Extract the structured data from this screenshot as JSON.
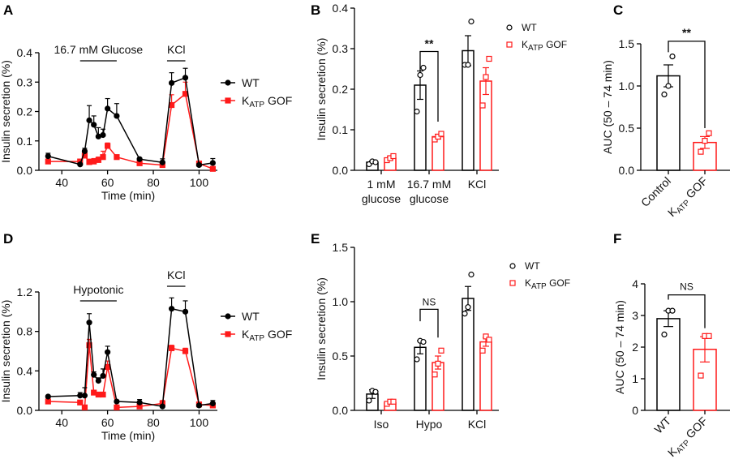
{
  "colors": {
    "wt": "#000000",
    "gof": "#ff1a1a"
  },
  "legend": {
    "wt": "WT",
    "gof_k": "K",
    "gof_sub": "ATP",
    "gof_rest": " GOF"
  },
  "chart_data": [
    {
      "panel": "A",
      "type": "line",
      "xlabel": "Time (min)",
      "ylabel": "Insulin secretion (%)",
      "xticks": [
        40,
        60,
        80,
        100
      ],
      "yticks": [
        "0.0",
        "0.1",
        "0.2",
        "0.3",
        "0.4"
      ],
      "xlim": [
        30,
        108
      ],
      "ylim": [
        0,
        0.4
      ],
      "annotations": [
        {
          "text": "16.7 mM Glucose",
          "from": 48,
          "to": 64
        },
        {
          "text": "KCl",
          "from": 86,
          "to": 94
        }
      ],
      "x": [
        34,
        48,
        50,
        52,
        54,
        56,
        58,
        60,
        64,
        74,
        84,
        88,
        94,
        100,
        106
      ],
      "series": [
        {
          "name": "WT",
          "values": [
            0.048,
            0.02,
            0.065,
            0.17,
            0.155,
            0.115,
            0.12,
            0.21,
            0.185,
            0.038,
            0.027,
            0.297,
            0.315,
            0.018,
            0.025
          ],
          "sem": [
            0.01,
            0.004,
            0.01,
            0.05,
            0.03,
            0.03,
            0.02,
            0.034,
            0.042,
            0.005,
            0.012,
            0.035,
            0.032,
            0.005,
            0.015
          ]
        },
        {
          "name": "KATP GOF",
          "values": [
            0.03,
            0.03,
            0.05,
            0.028,
            0.03,
            0.035,
            0.045,
            0.083,
            0.045,
            0.024,
            0.018,
            0.222,
            0.26,
            0.023,
            0.005
          ],
          "sem": [
            0.005,
            0.005,
            0.02,
            0.01,
            0.01,
            0.01,
            0.02,
            0.01,
            0.005,
            0.005,
            0.005,
            0.035,
            0.04,
            0.005,
            0.005
          ]
        }
      ]
    },
    {
      "panel": "B",
      "type": "bar",
      "ylabel": "Insulin secretion (%)",
      "categories": [
        [
          "1 mM",
          "glucose"
        ],
        [
          "16.7 mM",
          "glucose"
        ],
        [
          "KCl",
          ""
        ]
      ],
      "yticks": [
        "0.0",
        "0.1",
        "0.2",
        "0.3",
        "0.4"
      ],
      "ylim": [
        0,
        0.4
      ],
      "series": [
        {
          "name": "WT",
          "values": [
            0.02,
            0.21,
            0.295
          ],
          "sem": [
            0.003,
            0.035,
            0.037
          ],
          "points": [
            [
              0.015,
              0.022,
              0.02
            ],
            [
              0.145,
              0.235,
              0.253
            ],
            [
              0.26,
              0.26,
              0.367
            ]
          ]
        },
        {
          "name": "KATP GOF",
          "values": [
            0.03,
            0.083,
            0.22
          ],
          "sem": [
            0.004,
            0.006,
            0.033
          ],
          "points": [
            [
              0.025,
              0.03,
              0.035
            ],
            [
              0.076,
              0.083,
              0.09
            ],
            [
              0.16,
              0.23,
              0.275
            ]
          ]
        }
      ],
      "significance": [
        {
          "group": 1,
          "label": "**",
          "top": 0.293,
          "left": 0.245,
          "right": 0.12
        }
      ]
    },
    {
      "panel": "C",
      "type": "bar",
      "ylabel": "AUC (50 – 74 min)",
      "categories": [
        "Control",
        "KATP GOF"
      ],
      "yticks": [
        "0.0",
        "0.5",
        "1.0",
        "1.5"
      ],
      "ylim": [
        0,
        1.5
      ],
      "values": [
        1.12,
        0.33
      ],
      "sem": [
        0.13,
        0.07
      ],
      "points": [
        [
          0.9,
          1.0,
          1.35
        ],
        [
          0.22,
          0.35,
          0.44
        ]
      ],
      "significance": {
        "label": "**",
        "top": 1.53,
        "left": 1.4,
        "right": 0.5
      }
    },
    {
      "panel": "D",
      "type": "line",
      "xlabel": "Time (min)",
      "ylabel": "Insulin secretion (%)",
      "xticks": [
        40,
        60,
        80,
        100
      ],
      "yticks": [
        "0.0",
        "0.4",
        "0.8",
        "1.2"
      ],
      "xlim": [
        30,
        108
      ],
      "ylim": [
        0,
        1.2
      ],
      "annotations": [
        {
          "text": "Hypotonic",
          "from": 48,
          "to": 64
        },
        {
          "text": "KCl",
          "from": 86,
          "to": 94
        }
      ],
      "x": [
        34,
        48,
        50,
        52,
        54,
        56,
        58,
        60,
        64,
        74,
        84,
        88,
        94,
        100,
        106
      ],
      "series": [
        {
          "name": "WT",
          "values": [
            0.14,
            0.15,
            0.15,
            0.89,
            0.36,
            0.3,
            0.35,
            0.59,
            0.09,
            0.08,
            0.04,
            1.03,
            1.0,
            0.05,
            0.07
          ],
          "sem": [
            0.01,
            0.03,
            0.08,
            0.09,
            0.03,
            0.03,
            0.07,
            0.06,
            0.01,
            0.03,
            0.01,
            0.11,
            0.11,
            0.01,
            0.03
          ]
        },
        {
          "name": "KATP GOF",
          "values": [
            0.09,
            0.08,
            0.03,
            0.66,
            0.18,
            0.16,
            0.16,
            0.44,
            0.03,
            0.04,
            0.07,
            0.63,
            0.6,
            0.06,
            0.05
          ],
          "sem": [
            0.01,
            0.01,
            0.01,
            0.06,
            0.01,
            0.01,
            0.01,
            0.06,
            0.01,
            0.01,
            0.03,
            0.03,
            0.03,
            0.01,
            0.02
          ]
        }
      ]
    },
    {
      "panel": "E",
      "type": "bar",
      "ylabel": "Insulin secretion (%)",
      "categories": [
        [
          "Iso",
          ""
        ],
        [
          "Hypo",
          ""
        ],
        [
          "KCl",
          ""
        ]
      ],
      "yticks": [
        "0.0",
        "0.5",
        "1.0",
        "1.5"
      ],
      "ylim": [
        0,
        1.5
      ],
      "series": [
        {
          "name": "WT",
          "values": [
            0.15,
            0.58,
            1.03
          ],
          "sem": [
            0.04,
            0.06,
            0.11
          ],
          "points": [
            [
              0.09,
              0.18,
              0.17
            ],
            [
              0.47,
              0.64,
              0.63
            ],
            [
              0.89,
              0.95,
              1.25
            ]
          ]
        },
        {
          "name": "KATP GOF",
          "values": [
            0.07,
            0.44,
            0.63
          ],
          "sem": [
            0.01,
            0.06,
            0.04
          ],
          "points": [
            [
              0.06,
              0.08,
              0.08
            ],
            [
              0.33,
              0.43,
              0.55
            ],
            [
              0.55,
              0.68,
              0.65
            ]
          ]
        }
      ],
      "significance": [
        {
          "group": 1,
          "label": "NS",
          "top": 0.93,
          "left": 0.82,
          "right": 0.67
        }
      ]
    },
    {
      "panel": "F",
      "type": "bar",
      "ylabel": "AUC (50 – 74 min)",
      "categories": [
        "WT",
        "KATP GOF"
      ],
      "yticks": [
        "0",
        "1",
        "2",
        "3",
        "4"
      ],
      "ylim": [
        0,
        4
      ],
      "values": [
        2.9,
        1.93
      ],
      "sem": [
        0.25,
        0.4
      ],
      "points": [
        [
          2.4,
          3.15,
          3.15
        ],
        [
          1.1,
          2.35,
          2.35
        ]
      ],
      "significance": {
        "label": "NS",
        "top": 3.65,
        "left": 3.5,
        "right": 2.6
      }
    }
  ]
}
